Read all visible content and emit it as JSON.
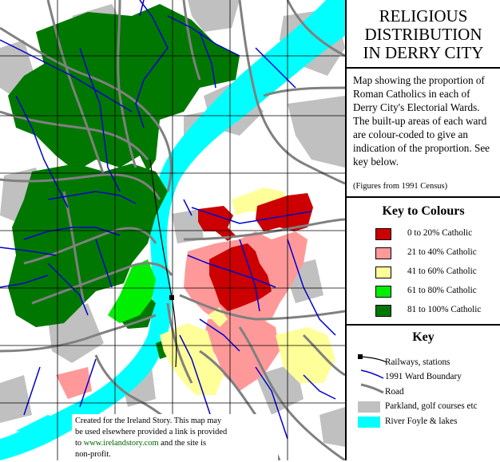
{
  "title_lines": [
    "RELIGIOUS",
    "DISTRIBUTION",
    "IN DERRY CITY"
  ],
  "description": "Map showing the proportion of Roman Catholics in each of Derry City's Electorial Wards. The built-up areas of each ward are colour-coded to give an indication of the proportion. See key below.",
  "figures_note": "(Figures from 1991 Census)",
  "colour_key": {
    "heading": "Key to Colours",
    "items": [
      {
        "label": "0 to 20% Catholic",
        "color": "#cc0000"
      },
      {
        "label": "21 to 40% Catholic",
        "color": "#ff9999"
      },
      {
        "label": "41 to 60% Catholic",
        "color": "#ffff99"
      },
      {
        "label": "61 to 80% Catholic",
        "color": "#00ee00"
      },
      {
        "label": "81 to 100% Catholic",
        "color": "#007700"
      }
    ]
  },
  "key": {
    "heading": "Key",
    "items": [
      {
        "label": "Railways, stations",
        "icon": "railway-icon"
      },
      {
        "label": "1991 Ward Boundary",
        "icon": "ward-boundary-icon"
      },
      {
        "label": "Road",
        "icon": "road-icon"
      },
      {
        "label": "Parkland, golf courses etc",
        "icon": "parkland-icon"
      },
      {
        "label": "River Foyle & lakes",
        "icon": "river-icon"
      }
    ]
  },
  "credit": {
    "line1": "Created for the Ireland Story. This map may",
    "line2": "be used elsewhere provided a link is provided",
    "line3_pre": "to ",
    "link": "www.irelandstory.com",
    "line3_post": " and the site is",
    "line4": "non-profit."
  },
  "colors": {
    "river": "#00ffff",
    "parkland": "#c0c0c0",
    "road": "#808080",
    "ward_boundary": "#0000cc",
    "grid": "#000000"
  }
}
